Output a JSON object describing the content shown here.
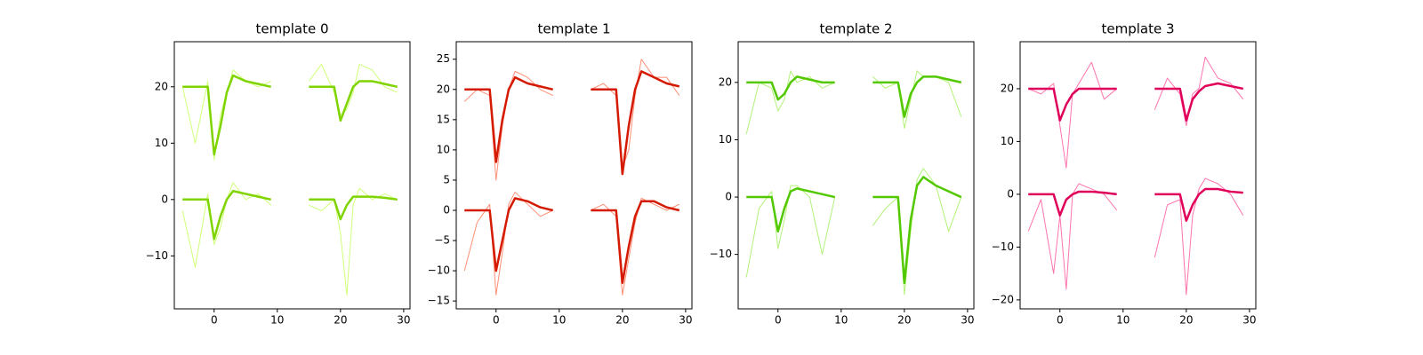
{
  "chart_data": [
    {
      "type": "line",
      "title": "template 0",
      "xlim": [
        -6.3,
        31
      ],
      "xticks": [
        0,
        10,
        20,
        30
      ],
      "ylim": [
        -19.4,
        28
      ],
      "yticks": [
        {
          "value": -10,
          "label": "−10"
        },
        0,
        10,
        20
      ],
      "series": [
        {
          "color": "#c8ff60",
          "linewidth": 1,
          "x": [
            -5,
            -3,
            -1,
            0,
            1,
            2,
            3,
            5,
            7,
            9
          ],
          "values": [
            20,
            10,
            21,
            7,
            15,
            19,
            23,
            21,
            20,
            21
          ]
        },
        {
          "color": "#c8ff60",
          "linewidth": 1,
          "x": [
            15,
            17,
            19,
            20,
            21,
            22,
            23,
            25,
            27,
            29
          ],
          "values": [
            21,
            24,
            19,
            15,
            16,
            19,
            24,
            23,
            20,
            19
          ]
        },
        {
          "color": "#c8ff60",
          "linewidth": 1,
          "x": [
            -5,
            -3,
            -1,
            0,
            1,
            2,
            3,
            5,
            7,
            9
          ],
          "values": [
            -2,
            -12,
            1,
            -8,
            -5,
            0,
            3,
            0,
            1,
            -1
          ]
        },
        {
          "color": "#c8ff60",
          "linewidth": 1,
          "x": [
            15,
            17,
            19,
            20,
            21,
            22,
            23,
            25,
            27,
            29
          ],
          "values": [
            -1,
            -2,
            0,
            -6,
            -17,
            -1,
            2,
            0,
            1,
            0
          ]
        },
        {
          "color": "#7fd400",
          "linewidth": 2.5,
          "x": [
            -5,
            -3,
            -1,
            0,
            1,
            2,
            3,
            5,
            7,
            9
          ],
          "values": [
            20,
            20,
            20,
            8,
            13,
            19,
            22,
            21,
            20.5,
            20
          ]
        },
        {
          "color": "#7fd400",
          "linewidth": 2.5,
          "x": [
            15,
            17,
            19,
            20,
            21,
            22,
            23,
            25,
            27,
            29
          ],
          "values": [
            20,
            20,
            20,
            14,
            17,
            20,
            21,
            21,
            20.5,
            20
          ]
        },
        {
          "color": "#7fd400",
          "linewidth": 2.5,
          "x": [
            -5,
            -3,
            -1,
            0,
            1,
            2,
            3,
            5,
            7,
            9
          ],
          "values": [
            0,
            0,
            0,
            -7,
            -3,
            0,
            1.5,
            1,
            0.5,
            0
          ]
        },
        {
          "color": "#7fd400",
          "linewidth": 2.5,
          "x": [
            15,
            17,
            19,
            20,
            21,
            22,
            23,
            25,
            27,
            29
          ],
          "values": [
            0,
            0,
            0,
            -3.5,
            -1,
            0.5,
            0.5,
            0.5,
            0.3,
            0
          ]
        }
      ]
    },
    {
      "type": "line",
      "title": "template 1",
      "xlim": [
        -6.3,
        31
      ],
      "xticks": [
        0,
        10,
        20,
        30
      ],
      "ylim": [
        -16.3,
        27.9
      ],
      "yticks": [
        {
          "value": -15,
          "label": "−15"
        },
        {
          "value": -10,
          "label": "−10"
        },
        {
          "value": -5,
          "label": "−5"
        },
        0,
        5,
        10,
        15,
        20,
        25
      ],
      "series": [
        {
          "color": "#ff7a5c",
          "linewidth": 1,
          "x": [
            -5,
            -3,
            -1,
            0,
            1,
            2,
            3,
            5,
            7,
            9
          ],
          "values": [
            18,
            20,
            19,
            5,
            14,
            20,
            23,
            22,
            20,
            19
          ]
        },
        {
          "color": "#ff7a5c",
          "linewidth": 1,
          "x": [
            15,
            17,
            19,
            20,
            21,
            22,
            23,
            25,
            27,
            29
          ],
          "values": [
            20,
            21,
            19,
            7,
            10,
            19,
            25,
            22,
            22,
            19
          ]
        },
        {
          "color": "#ff7a5c",
          "linewidth": 1,
          "x": [
            -5,
            -3,
            -1,
            0,
            1,
            2,
            3,
            5,
            7,
            9
          ],
          "values": [
            -10,
            -2,
            1,
            -14,
            -7,
            1,
            3,
            1,
            -1,
            0
          ]
        },
        {
          "color": "#ff7a5c",
          "linewidth": 1,
          "x": [
            15,
            17,
            19,
            20,
            21,
            22,
            23,
            25,
            27,
            29
          ],
          "values": [
            0,
            1,
            -1,
            -14,
            -8,
            -2,
            2,
            1,
            0,
            1
          ]
        },
        {
          "color": "#d41a00",
          "linewidth": 2.5,
          "x": [
            -5,
            -3,
            -1,
            0,
            1,
            2,
            3,
            5,
            7,
            9
          ],
          "values": [
            20,
            20,
            20,
            8,
            15,
            20,
            22,
            21,
            20.5,
            20
          ]
        },
        {
          "color": "#d41a00",
          "linewidth": 2.5,
          "x": [
            15,
            17,
            19,
            20,
            21,
            22,
            23,
            25,
            27,
            29
          ],
          "values": [
            20,
            20,
            20,
            6,
            14,
            20,
            23,
            22,
            21,
            20.5
          ]
        },
        {
          "color": "#d41a00",
          "linewidth": 2.5,
          "x": [
            -5,
            -3,
            -1,
            0,
            1,
            2,
            3,
            5,
            7,
            9
          ],
          "values": [
            0,
            0,
            0,
            -10,
            -5,
            0,
            2,
            1.5,
            0.5,
            0
          ]
        },
        {
          "color": "#d41a00",
          "linewidth": 2.5,
          "x": [
            15,
            17,
            19,
            20,
            21,
            22,
            23,
            25,
            27,
            29
          ],
          "values": [
            0,
            0,
            0,
            -12,
            -6,
            -1,
            1.5,
            1.5,
            0.5,
            0
          ]
        }
      ]
    },
    {
      "type": "line",
      "title": "template 2",
      "xlim": [
        -6.3,
        31
      ],
      "xticks": [
        0,
        10,
        20,
        30
      ],
      "ylim": [
        -19.5,
        27.1
      ],
      "yticks": [
        {
          "value": -10,
          "label": "−10"
        },
        0,
        10,
        20
      ],
      "series": [
        {
          "color": "#a4f060",
          "linewidth": 1,
          "x": [
            -5,
            -3,
            -1,
            0,
            1,
            2,
            3,
            5,
            7,
            9
          ],
          "values": [
            11,
            20,
            19,
            15,
            17,
            22,
            20,
            21,
            19,
            20
          ]
        },
        {
          "color": "#a4f060",
          "linewidth": 1,
          "x": [
            15,
            17,
            19,
            20,
            21,
            22,
            23,
            25,
            27,
            29
          ],
          "values": [
            21,
            19,
            20,
            12,
            17,
            22,
            21,
            21,
            20,
            14
          ]
        },
        {
          "color": "#a4f060",
          "linewidth": 1,
          "x": [
            -5,
            -3,
            -1,
            0,
            1,
            2,
            3,
            5,
            7,
            9
          ],
          "values": [
            -14,
            -2,
            1,
            -9,
            -4,
            2,
            2,
            0,
            -10,
            0
          ]
        },
        {
          "color": "#a4f060",
          "linewidth": 1,
          "x": [
            15,
            17,
            19,
            20,
            21,
            22,
            23,
            25,
            27,
            29
          ],
          "values": [
            -5,
            -2,
            0,
            -17,
            -6,
            3,
            5,
            2,
            -6,
            0
          ]
        },
        {
          "color": "#52c800",
          "linewidth": 2.5,
          "x": [
            -5,
            -3,
            -1,
            0,
            1,
            2,
            3,
            5,
            7,
            9
          ],
          "values": [
            20,
            20,
            20,
            17,
            18,
            20,
            21,
            20.5,
            20,
            20
          ]
        },
        {
          "color": "#52c800",
          "linewidth": 2.5,
          "x": [
            15,
            17,
            19,
            20,
            21,
            22,
            23,
            25,
            27,
            29
          ],
          "values": [
            20,
            20,
            20,
            14,
            18,
            20,
            21,
            21,
            20.5,
            20
          ]
        },
        {
          "color": "#52c800",
          "linewidth": 2.5,
          "x": [
            -5,
            -3,
            -1,
            0,
            1,
            2,
            3,
            5,
            7,
            9
          ],
          "values": [
            0,
            0,
            0,
            -6,
            -2,
            1,
            1.5,
            1,
            0.5,
            0
          ]
        },
        {
          "color": "#52c800",
          "linewidth": 2.5,
          "x": [
            15,
            17,
            19,
            20,
            21,
            22,
            23,
            25,
            27,
            29
          ],
          "values": [
            0,
            0,
            0,
            -15,
            -4,
            2,
            3.5,
            2,
            1,
            0
          ]
        }
      ]
    },
    {
      "type": "line",
      "title": "template 3",
      "xlim": [
        -6.3,
        31
      ],
      "xticks": [
        0,
        10,
        20,
        30
      ],
      "ylim": [
        -21.7,
        28.9
      ],
      "yticks": [
        {
          "value": -20,
          "label": "−20"
        },
        {
          "value": -10,
          "label": "−10"
        },
        0,
        10,
        20
      ],
      "series": [
        {
          "color": "#ff5aa0",
          "linewidth": 1,
          "x": [
            -5,
            -3,
            -1,
            0,
            1,
            2,
            3,
            5,
            7,
            9
          ],
          "values": [
            20,
            19,
            21,
            13,
            5,
            19,
            21,
            25,
            18,
            20
          ]
        },
        {
          "color": "#ff5aa0",
          "linewidth": 1,
          "x": [
            15,
            17,
            19,
            20,
            21,
            22,
            23,
            25,
            27,
            29
          ],
          "values": [
            16,
            22,
            19,
            13,
            19,
            20,
            26,
            22,
            21,
            18
          ]
        },
        {
          "color": "#ff5aa0",
          "linewidth": 1,
          "x": [
            -5,
            -3,
            -1,
            0,
            1,
            2,
            3,
            5,
            7,
            9
          ],
          "values": [
            -7,
            -1,
            -15,
            -4,
            -18,
            0,
            2,
            1,
            0,
            -3
          ]
        },
        {
          "color": "#ff5aa0",
          "linewidth": 1,
          "x": [
            15,
            17,
            19,
            20,
            21,
            22,
            23,
            25,
            27,
            29
          ],
          "values": [
            -12,
            -2,
            -1,
            -19,
            -4,
            1,
            3,
            2,
            0,
            -4
          ]
        },
        {
          "color": "#e0005a",
          "linewidth": 2.5,
          "x": [
            -5,
            -3,
            -1,
            0,
            1,
            2,
            3,
            5,
            7,
            9
          ],
          "values": [
            20,
            20,
            20,
            14,
            17,
            19,
            20,
            20,
            20,
            20
          ]
        },
        {
          "color": "#e0005a",
          "linewidth": 2.5,
          "x": [
            15,
            17,
            19,
            20,
            21,
            22,
            23,
            25,
            27,
            29
          ],
          "values": [
            20,
            20,
            20,
            14,
            18,
            19.5,
            20.5,
            21,
            20.5,
            20
          ]
        },
        {
          "color": "#e0005a",
          "linewidth": 2.5,
          "x": [
            -5,
            -3,
            -1,
            0,
            1,
            2,
            3,
            5,
            7,
            9
          ],
          "values": [
            0,
            0,
            0,
            -4,
            -1,
            0,
            0.5,
            0.5,
            0.3,
            0
          ]
        },
        {
          "color": "#e0005a",
          "linewidth": 2.5,
          "x": [
            15,
            17,
            19,
            20,
            21,
            22,
            23,
            25,
            27,
            29
          ],
          "values": [
            0,
            0,
            0,
            -5,
            -2,
            0,
            1,
            1,
            0.5,
            0.3
          ]
        }
      ]
    }
  ]
}
